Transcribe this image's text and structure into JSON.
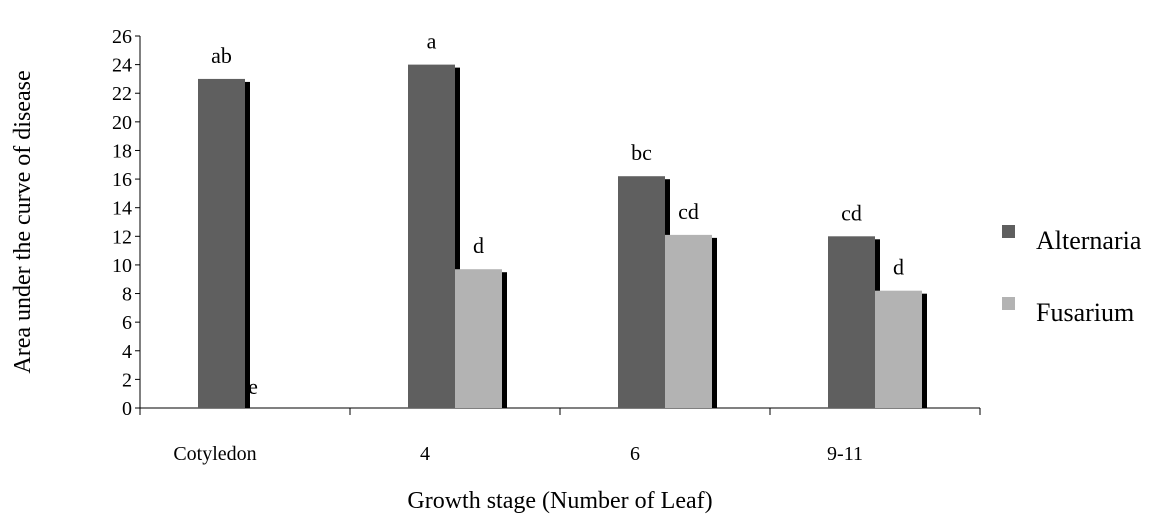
{
  "chart_data": {
    "type": "bar",
    "title": "",
    "xlabel": "Growth stage (Number of Leaf)",
    "ylabel": "Area under the curve of disease",
    "ylim": [
      0,
      26
    ],
    "yticks": [
      0,
      2,
      4,
      6,
      8,
      10,
      12,
      14,
      16,
      18,
      20,
      22,
      24,
      26
    ],
    "categories": [
      "Cotyledon",
      "4",
      "6",
      "9-11"
    ],
    "series": [
      {
        "name": "Alternaria",
        "color": "#5f5f5f",
        "values": [
          23,
          24,
          16.2,
          12
        ],
        "letters": [
          "ab",
          "a",
          "bc",
          "cd"
        ]
      },
      {
        "name": "Fusarium",
        "color": "#b3b3b3",
        "values": [
          0,
          9.7,
          12.1,
          8.2
        ],
        "letters": [
          "e",
          "d",
          "cd",
          "d"
        ]
      }
    ],
    "legend_position": "right",
    "grid": false
  }
}
